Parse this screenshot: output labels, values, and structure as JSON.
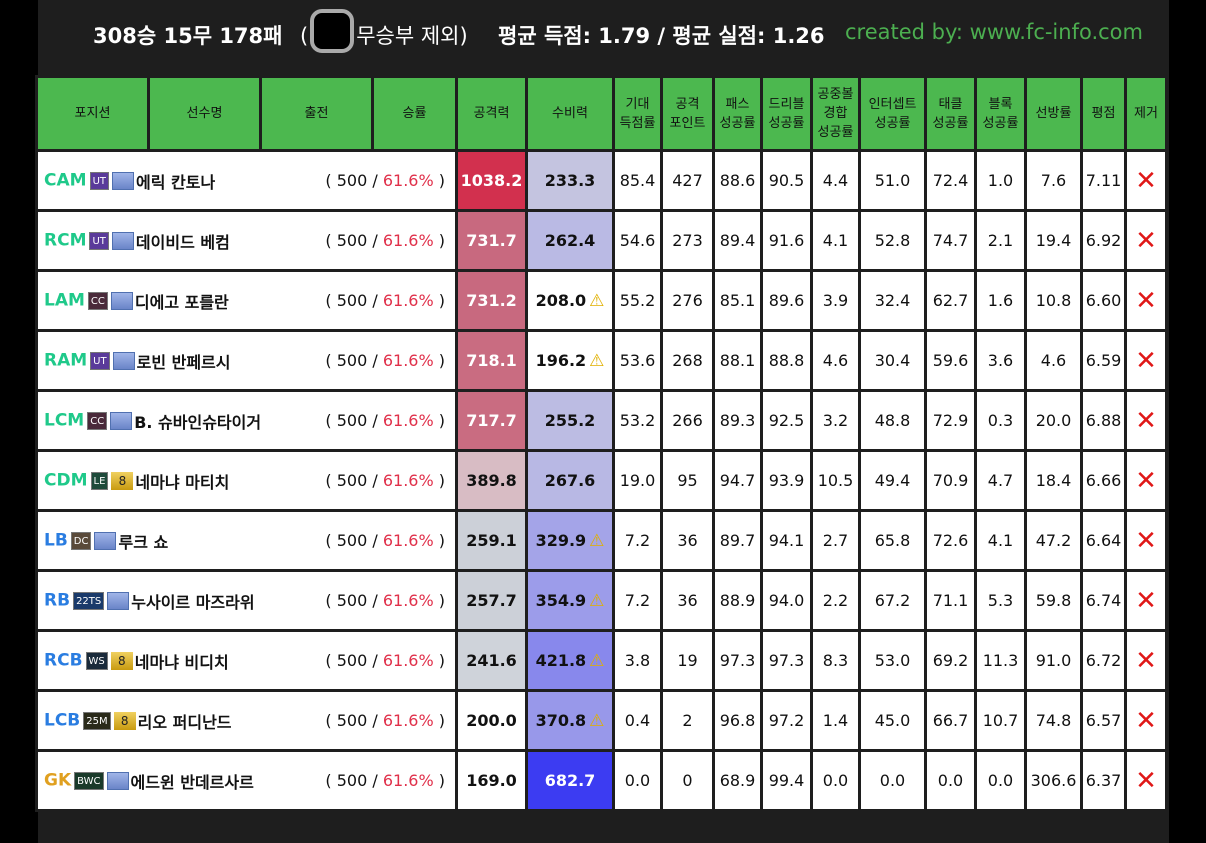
{
  "summary": {
    "record": "308승 15무 178패",
    "open_paren": "(",
    "excluded": "무승부 제외)",
    "averages": "평균 득점: 1.79 / 평균 실점: 1.26",
    "credit": "created by: www.fc-info.com"
  },
  "headers": [
    "포지션",
    "선수명",
    "출전",
    "승률",
    "공격력",
    "수비력",
    "기대\n득점률",
    "공격\n포인트",
    "패스\n성공률",
    "드리블\n성공률",
    "공중볼\n경합\n성공률",
    "인터셉트\n성공률",
    "태클\n성공률",
    "블록\n성공률",
    "선방률",
    "평점",
    "제거"
  ],
  "colors": {
    "header": "#4cb84f",
    "attacker_pos": "#1fc98a",
    "defender_pos": "#2a7de1",
    "gk_pos": "#e0a020",
    "win_rate": "#e0304a",
    "remove": "#e01818"
  },
  "rows": [
    {
      "pos": "CAM",
      "role": "att",
      "season": "UT",
      "level": "",
      "name": "에릭 칸토나",
      "games": "500",
      "rate": "61.6%",
      "atk": "1038.2",
      "atk_bg": "#d2304e",
      "def": "233.3",
      "def_bg": "#c4c4e0",
      "warn": false,
      "stats": [
        "85.4",
        "427",
        "88.6",
        "90.5",
        "4.4",
        "51.0",
        "72.4",
        "1.0",
        "7.6",
        "7.11"
      ]
    },
    {
      "pos": "RCM",
      "role": "att",
      "season": "UT",
      "level": "",
      "name": "데이비드 베컴",
      "games": "500",
      "rate": "61.6%",
      "atk": "731.7",
      "atk_bg": "#c8697f",
      "def": "262.4",
      "def_bg": "#babae4",
      "warn": false,
      "stats": [
        "54.6",
        "273",
        "89.4",
        "91.6",
        "4.1",
        "52.8",
        "74.7",
        "2.1",
        "19.4",
        "6.92"
      ]
    },
    {
      "pos": "LAM",
      "role": "att",
      "season": "CC",
      "level": "",
      "name": "디에고 포를란",
      "games": "500",
      "rate": "61.6%",
      "atk": "731.2",
      "atk_bg": "#c8697f",
      "def": "208.0",
      "def_bg": "#ffffff",
      "warn": true,
      "stats": [
        "55.2",
        "276",
        "85.1",
        "89.6",
        "3.9",
        "32.4",
        "62.7",
        "1.6",
        "10.8",
        "6.60"
      ]
    },
    {
      "pos": "RAM",
      "role": "att",
      "season": "UT",
      "level": "",
      "name": "로빈 반페르시",
      "games": "500",
      "rate": "61.6%",
      "atk": "718.1",
      "atk_bg": "#c96c81",
      "def": "196.2",
      "def_bg": "#ffffff",
      "warn": true,
      "stats": [
        "53.6",
        "268",
        "88.1",
        "88.8",
        "4.6",
        "30.4",
        "59.6",
        "3.6",
        "4.6",
        "6.59"
      ]
    },
    {
      "pos": "LCM",
      "role": "att",
      "season": "CC",
      "level": "",
      "name": "B. 슈바인슈타이거",
      "games": "500",
      "rate": "61.6%",
      "atk": "717.7",
      "atk_bg": "#c96c81",
      "def": "255.2",
      "def_bg": "#bcbce3",
      "warn": false,
      "stats": [
        "53.2",
        "266",
        "89.3",
        "92.5",
        "3.2",
        "48.8",
        "72.9",
        "0.3",
        "20.0",
        "6.88"
      ]
    },
    {
      "pos": "CDM",
      "role": "att",
      "season": "LE",
      "level": "8",
      "name": "네마냐 마티치",
      "games": "500",
      "rate": "61.6%",
      "atk": "389.8",
      "atk_bg": "#d8bcc4",
      "def": "267.6",
      "def_bg": "#b8b8e4",
      "warn": false,
      "stats": [
        "19.0",
        "95",
        "94.7",
        "93.9",
        "10.5",
        "49.4",
        "70.9",
        "4.7",
        "18.4",
        "6.66"
      ]
    },
    {
      "pos": "LB",
      "role": "def",
      "season": "DC",
      "level": "",
      "name": "루크 쇼",
      "games": "500",
      "rate": "61.6%",
      "atk": "259.1",
      "atk_bg": "#ccd0d8",
      "def": "329.9",
      "def_bg": "#a4a4e8",
      "warn": true,
      "stats": [
        "7.2",
        "36",
        "89.7",
        "94.1",
        "2.7",
        "65.8",
        "72.6",
        "4.1",
        "47.2",
        "6.64"
      ]
    },
    {
      "pos": "RB",
      "role": "def",
      "season": "22TS",
      "level": "",
      "name": "누사이르 마즈라위",
      "games": "500",
      "rate": "61.6%",
      "atk": "257.7",
      "atk_bg": "#ccd0d8",
      "def": "354.9",
      "def_bg": "#9c9cea",
      "warn": true,
      "stats": [
        "7.2",
        "36",
        "88.9",
        "94.0",
        "2.2",
        "67.2",
        "71.1",
        "5.3",
        "59.8",
        "6.74"
      ]
    },
    {
      "pos": "RCB",
      "role": "def",
      "season": "WS",
      "level": "8",
      "name": "네마냐 비디치",
      "games": "500",
      "rate": "61.6%",
      "atk": "241.6",
      "atk_bg": "#cfd3da",
      "def": "421.8",
      "def_bg": "#8888ec",
      "warn": true,
      "stats": [
        "3.8",
        "19",
        "97.3",
        "97.3",
        "8.3",
        "53.0",
        "69.2",
        "11.3",
        "91.0",
        "6.72"
      ]
    },
    {
      "pos": "LCB",
      "role": "def",
      "season": "25M",
      "level": "8",
      "name": "리오 퍼디난드",
      "games": "500",
      "rate": "61.6%",
      "atk": "200.0",
      "atk_bg": "#ffffff",
      "def": "370.8",
      "def_bg": "#9898ea",
      "warn": true,
      "stats": [
        "0.4",
        "2",
        "96.8",
        "97.2",
        "1.4",
        "45.0",
        "66.7",
        "10.7",
        "74.8",
        "6.57"
      ]
    },
    {
      "pos": "GK",
      "role": "gk",
      "season": "BWC",
      "level": "",
      "name": "에드윈 반데르사르",
      "games": "500",
      "rate": "61.6%",
      "atk": "169.0",
      "atk_bg": "#ffffff",
      "def": "682.7",
      "def_bg": "#3c3cf2",
      "warn": false,
      "stats": [
        "0.0",
        "0",
        "68.9",
        "99.4",
        "0.0",
        "0.0",
        "0.0",
        "0.0",
        "306.6",
        "6.37"
      ]
    }
  ],
  "season_colors": {
    "UT": "#5a3a9a",
    "CC": "#4a2a3a",
    "LE": "#1e4a3a",
    "DC": "#5a4a3a",
    "22TS": "#1a3a6a",
    "WS": "#1a2a3a",
    "25M": "#2a2a1a",
    "BWC": "#1a3a2a"
  },
  "rate_sep": "/",
  "remove_icon": "✕",
  "warn_icon": "⚠"
}
